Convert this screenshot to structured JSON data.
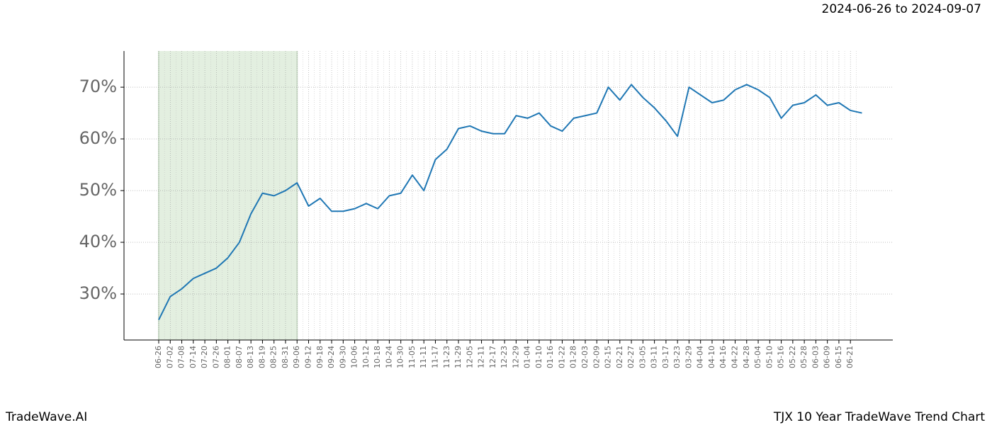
{
  "header": {
    "date_range": "2024-06-26 to 2024-09-07"
  },
  "footer": {
    "brand": "TradeWave.AI",
    "caption": "TJX 10 Year TradeWave Trend Chart"
  },
  "chart_data": {
    "type": "line",
    "categories": [
      "06-26",
      "07-02",
      "07-08",
      "07-14",
      "07-20",
      "07-26",
      "08-01",
      "08-07",
      "08-13",
      "08-19",
      "08-25",
      "08-31",
      "09-06",
      "09-12",
      "09-18",
      "09-24",
      "09-30",
      "10-06",
      "10-12",
      "10-18",
      "10-24",
      "10-30",
      "11-05",
      "11-11",
      "11-17",
      "11-23",
      "11-29",
      "12-05",
      "12-11",
      "12-17",
      "12-23",
      "12-29",
      "01-04",
      "01-10",
      "01-16",
      "01-22",
      "01-28",
      "02-03",
      "02-09",
      "02-15",
      "02-21",
      "02-27",
      "03-05",
      "03-11",
      "03-17",
      "03-23",
      "03-29",
      "04-04",
      "04-10",
      "04-16",
      "04-22",
      "04-28",
      "05-04",
      "05-10",
      "05-16",
      "05-22",
      "05-28",
      "06-03",
      "06-09",
      "06-15",
      "06-21",
      null
    ],
    "values": [
      25,
      29.5,
      31,
      33,
      34,
      35,
      37,
      40,
      45.5,
      49.5,
      49,
      50,
      51.5,
      47,
      48.5,
      46,
      46,
      46.5,
      47.5,
      46.5,
      49,
      49.5,
      53,
      50,
      56,
      58,
      62,
      62.5,
      61.5,
      61,
      61,
      64.5,
      64,
      65,
      62.5,
      61.5,
      64,
      64.5,
      65,
      70,
      67.5,
      70.5,
      68,
      66,
      63.5,
      60.5,
      70,
      68.5,
      67,
      67.5,
      69.5,
      70.5,
      69.5,
      68,
      64,
      66.5,
      67,
      68.5,
      66.5,
      67,
      65.5,
      65
    ],
    "color": "#1f77b4",
    "ylim": [
      21.1,
      77
    ],
    "yticks": [
      {
        "value": 30,
        "label": "30%"
      },
      {
        "value": 40,
        "label": "40%"
      },
      {
        "value": 50,
        "label": "50%"
      },
      {
        "value": 60,
        "label": "60%"
      },
      {
        "value": 70,
        "label": "70%"
      }
    ],
    "grid": true,
    "shade": {
      "from": 0,
      "to": 12,
      "color": "#e3efe0"
    }
  }
}
